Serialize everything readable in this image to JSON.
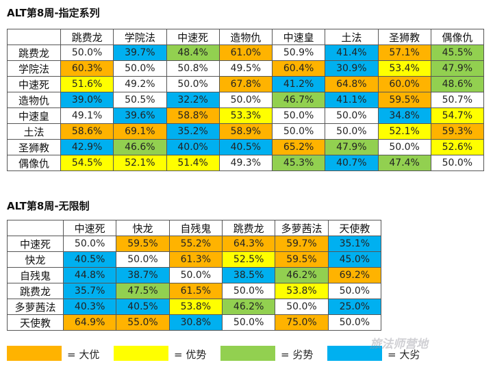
{
  "colors": {
    "big_adv": "#FFB300",
    "adv": "#FFFF00",
    "disadv": "#92D050",
    "big_disadv": "#00B0F0",
    "neutral": "#FFFFFF"
  },
  "section1": {
    "title": "ALT第8周-指定系列",
    "headers": [
      "",
      "跳费龙",
      "学院法",
      "中速死",
      "造物仇",
      "中速皇",
      "土法",
      "圣狮教",
      "偶像仇"
    ],
    "rows": [
      {
        "name": "跳费龙",
        "cells": [
          [
            "50.0%",
            "neutral"
          ],
          [
            "39.7%",
            "big_disadv"
          ],
          [
            "48.4%",
            "disadv"
          ],
          [
            "61.0%",
            "big_adv"
          ],
          [
            "50.9%",
            "neutral"
          ],
          [
            "41.4%",
            "big_disadv"
          ],
          [
            "57.1%",
            "big_adv"
          ],
          [
            "45.5%",
            "disadv"
          ]
        ]
      },
      {
        "name": "学院法",
        "cells": [
          [
            "60.3%",
            "big_adv"
          ],
          [
            "50.0%",
            "neutral"
          ],
          [
            "50.8%",
            "neutral"
          ],
          [
            "49.5%",
            "neutral"
          ],
          [
            "60.4%",
            "big_adv"
          ],
          [
            "30.9%",
            "big_disadv"
          ],
          [
            "53.4%",
            "adv"
          ],
          [
            "47.9%",
            "disadv"
          ]
        ]
      },
      {
        "name": "中速死",
        "cells": [
          [
            "51.6%",
            "adv"
          ],
          [
            "49.2%",
            "neutral"
          ],
          [
            "50.0%",
            "neutral"
          ],
          [
            "67.8%",
            "big_adv"
          ],
          [
            "41.2%",
            "big_disadv"
          ],
          [
            "64.8%",
            "big_adv"
          ],
          [
            "60.0%",
            "big_adv"
          ],
          [
            "48.6%",
            "disadv"
          ]
        ]
      },
      {
        "name": "造物仇",
        "cells": [
          [
            "39.0%",
            "big_disadv"
          ],
          [
            "50.5%",
            "neutral"
          ],
          [
            "32.2%",
            "big_disadv"
          ],
          [
            "50.0%",
            "neutral"
          ],
          [
            "46.7%",
            "disadv"
          ],
          [
            "41.1%",
            "big_disadv"
          ],
          [
            "59.5%",
            "big_adv"
          ],
          [
            "50.7%",
            "neutral"
          ]
        ]
      },
      {
        "name": "中速皇",
        "cells": [
          [
            "49.1%",
            "neutral"
          ],
          [
            "39.6%",
            "big_disadv"
          ],
          [
            "58.8%",
            "big_adv"
          ],
          [
            "53.3%",
            "adv"
          ],
          [
            "50.0%",
            "neutral"
          ],
          [
            "50.0%",
            "neutral"
          ],
          [
            "34.8%",
            "big_disadv"
          ],
          [
            "54.7%",
            "adv"
          ]
        ]
      },
      {
        "name": "土法",
        "cells": [
          [
            "58.6%",
            "big_adv"
          ],
          [
            "69.1%",
            "big_adv"
          ],
          [
            "35.2%",
            "big_disadv"
          ],
          [
            "58.9%",
            "big_adv"
          ],
          [
            "50.0%",
            "neutral"
          ],
          [
            "50.0%",
            "neutral"
          ],
          [
            "52.1%",
            "adv"
          ],
          [
            "59.3%",
            "big_adv"
          ]
        ]
      },
      {
        "name": "圣狮教",
        "cells": [
          [
            "42.9%",
            "big_disadv"
          ],
          [
            "46.6%",
            "disadv"
          ],
          [
            "40.0%",
            "big_disadv"
          ],
          [
            "40.5%",
            "big_disadv"
          ],
          [
            "65.2%",
            "big_adv"
          ],
          [
            "47.9%",
            "disadv"
          ],
          [
            "50.0%",
            "neutral"
          ],
          [
            "52.6%",
            "adv"
          ]
        ]
      },
      {
        "name": "偶像仇",
        "cells": [
          [
            "54.5%",
            "adv"
          ],
          [
            "52.1%",
            "adv"
          ],
          [
            "51.4%",
            "adv"
          ],
          [
            "49.3%",
            "neutral"
          ],
          [
            "45.3%",
            "disadv"
          ],
          [
            "40.7%",
            "big_disadv"
          ],
          [
            "47.4%",
            "disadv"
          ],
          [
            "50.0%",
            "neutral"
          ]
        ]
      }
    ]
  },
  "section2": {
    "title": "ALT第8周-无限制",
    "headers": [
      "",
      "中速死",
      "快龙",
      "自残鬼",
      "跳费龙",
      "多萝茜法",
      "天使教"
    ],
    "rows": [
      {
        "name": "中速死",
        "cells": [
          [
            "50.0%",
            "neutral"
          ],
          [
            "59.5%",
            "big_adv"
          ],
          [
            "55.2%",
            "big_adv"
          ],
          [
            "64.3%",
            "big_adv"
          ],
          [
            "59.7%",
            "big_adv"
          ],
          [
            "35.1%",
            "big_disadv"
          ]
        ]
      },
      {
        "name": "快龙",
        "cells": [
          [
            "40.5%",
            "big_disadv"
          ],
          [
            "50.0%",
            "neutral"
          ],
          [
            "61.3%",
            "big_adv"
          ],
          [
            "52.5%",
            "adv"
          ],
          [
            "59.5%",
            "big_adv"
          ],
          [
            "45.0%",
            "big_disadv"
          ]
        ]
      },
      {
        "name": "自残鬼",
        "cells": [
          [
            "44.8%",
            "big_disadv"
          ],
          [
            "38.7%",
            "big_disadv"
          ],
          [
            "50.0%",
            "neutral"
          ],
          [
            "38.5%",
            "big_disadv"
          ],
          [
            "46.2%",
            "disadv"
          ],
          [
            "69.2%",
            "big_adv"
          ]
        ]
      },
      {
        "name": "跳费龙",
        "cells": [
          [
            "35.7%",
            "big_disadv"
          ],
          [
            "47.5%",
            "disadv"
          ],
          [
            "61.5%",
            "big_adv"
          ],
          [
            "50.0%",
            "neutral"
          ],
          [
            "53.8%",
            "adv"
          ],
          [
            "50.0%",
            "neutral"
          ]
        ]
      },
      {
        "name": "多萝茜法",
        "cells": [
          [
            "40.3%",
            "big_disadv"
          ],
          [
            "40.5%",
            "big_disadv"
          ],
          [
            "53.8%",
            "adv"
          ],
          [
            "46.2%",
            "disadv"
          ],
          [
            "50.0%",
            "neutral"
          ],
          [
            "25.0%",
            "big_disadv"
          ]
        ]
      },
      {
        "name": "天使教",
        "cells": [
          [
            "64.9%",
            "big_adv"
          ],
          [
            "55.0%",
            "big_adv"
          ],
          [
            "30.8%",
            "big_disadv"
          ],
          [
            "50.0%",
            "neutral"
          ],
          [
            "75.0%",
            "big_adv"
          ],
          [
            "50.0%",
            "neutral"
          ]
        ]
      }
    ]
  },
  "legend": [
    {
      "key": "big_adv",
      "label": "= 大优"
    },
    {
      "key": "adv",
      "label": "= 优势"
    },
    {
      "key": "disadv",
      "label": "= 劣势"
    },
    {
      "key": "big_disadv",
      "label": "= 大劣"
    }
  ],
  "watermark": "旅法师营地"
}
